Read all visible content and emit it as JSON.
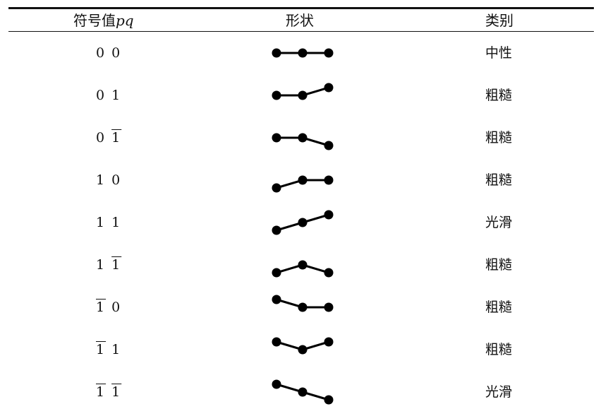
{
  "headers": {
    "symbol_prefix": "符号值",
    "symbol_var": "pq",
    "shape": "形状",
    "category": "类别"
  },
  "rows": [
    {
      "p": "0",
      "p_bar": false,
      "q": "0",
      "q_bar": false,
      "category": "中性",
      "shape": [
        0,
        0,
        0
      ]
    },
    {
      "p": "0",
      "p_bar": false,
      "q": "1",
      "q_bar": false,
      "category": "粗糙",
      "shape": [
        0,
        0,
        1
      ]
    },
    {
      "p": "0",
      "p_bar": false,
      "q": "1",
      "q_bar": true,
      "category": "粗糙",
      "shape": [
        0,
        0,
        -1
      ]
    },
    {
      "p": "1",
      "p_bar": false,
      "q": "0",
      "q_bar": false,
      "category": "粗糙",
      "shape": [
        -1,
        0,
        0
      ]
    },
    {
      "p": "1",
      "p_bar": false,
      "q": "1",
      "q_bar": false,
      "category": "光滑",
      "shape": [
        -1,
        0,
        1
      ]
    },
    {
      "p": "1",
      "p_bar": false,
      "q": "1",
      "q_bar": true,
      "category": "粗糙",
      "shape": [
        -1,
        0,
        -1
      ]
    },
    {
      "p": "1",
      "p_bar": true,
      "q": "0",
      "q_bar": false,
      "category": "粗糙",
      "shape": [
        1,
        0,
        0
      ]
    },
    {
      "p": "1",
      "p_bar": true,
      "q": "1",
      "q_bar": false,
      "category": "粗糙",
      "shape": [
        1,
        0,
        1
      ]
    },
    {
      "p": "1",
      "p_bar": true,
      "q": "1",
      "q_bar": true,
      "category": "光滑",
      "shape": [
        1,
        0,
        -1
      ]
    }
  ]
}
